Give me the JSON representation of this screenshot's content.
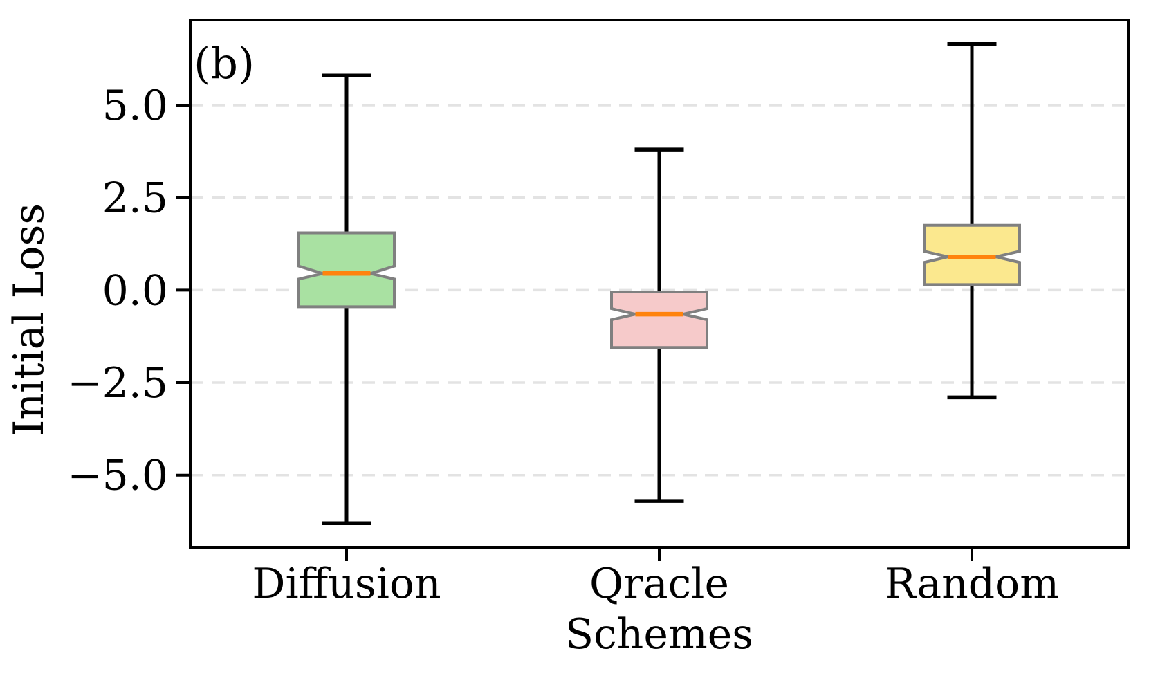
{
  "figure": {
    "panel_label": "(b)"
  },
  "chart_data": {
    "type": "boxplot",
    "notched": true,
    "panel_label": "(b)",
    "xlabel": "Schemes",
    "ylabel": "Initial Loss",
    "categories": [
      "Diffusion",
      "Qracle",
      "Random"
    ],
    "ytick_values": [
      5.0,
      2.5,
      0.0,
      -2.5,
      -5.0
    ],
    "ytick_labels": [
      "5.0",
      "2.5",
      "0.0",
      "−2.5",
      "−5.0"
    ],
    "ylim": [
      -6.95,
      7.3
    ],
    "grid": "horizontal-dashed",
    "legend": "none",
    "series": [
      {
        "name": "Diffusion",
        "box_color": "#a9e1a2",
        "whisker_low": -6.3,
        "q1": -0.45,
        "notch_low": 0.3,
        "median": 0.45,
        "notch_high": 0.65,
        "q3": 1.55,
        "whisker_high": 5.8
      },
      {
        "name": "Qracle",
        "box_color": "#f6caca",
        "whisker_low": -5.7,
        "q1": -1.55,
        "notch_low": -0.8,
        "median": -0.65,
        "notch_high": -0.5,
        "q3": -0.05,
        "whisker_high": 3.8
      },
      {
        "name": "Random",
        "box_color": "#fbe88e",
        "whisker_low": -2.9,
        "q1": 0.15,
        "notch_low": 0.75,
        "median": 0.9,
        "notch_high": 1.05,
        "q3": 1.75,
        "whisker_high": 6.65
      }
    ],
    "median_color": "#ff830d",
    "box_edge_color": "#808080",
    "whisker_color": "#000000",
    "grid_color": "#e3e3e3",
    "spine_color": "#000000"
  }
}
